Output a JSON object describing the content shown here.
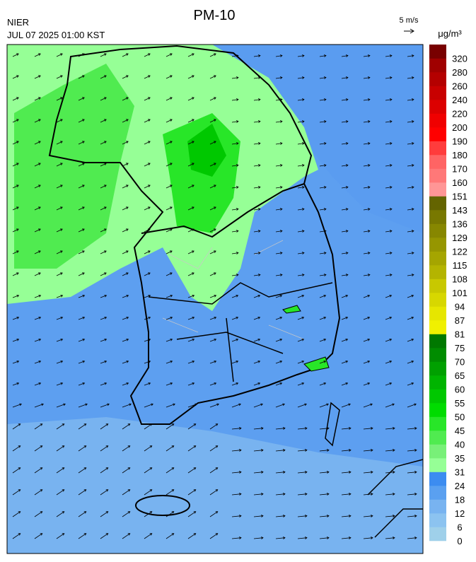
{
  "header": {
    "title": "PM-10",
    "agency": "NIER",
    "timestamp": "JUL 07 2025 01:00 KST",
    "wind_scale": "5 m/s"
  },
  "legend": {
    "unit": "μg/m³",
    "levels": [
      {
        "label": 0,
        "color": "#9fd0ea"
      },
      {
        "label": 6,
        "color": "#8cc3f0"
      },
      {
        "label": 12,
        "color": "#78b3f0"
      },
      {
        "label": 18,
        "color": "#5aa0f0"
      },
      {
        "label": 24,
        "color": "#3c8cf0"
      },
      {
        "label": 31,
        "color": "#96ff96"
      },
      {
        "label": 35,
        "color": "#78f078"
      },
      {
        "label": 40,
        "color": "#50eb50"
      },
      {
        "label": 45,
        "color": "#28e628"
      },
      {
        "label": 50,
        "color": "#00dc00"
      },
      {
        "label": 55,
        "color": "#00c800"
      },
      {
        "label": 60,
        "color": "#00b400"
      },
      {
        "label": 65,
        "color": "#00a000"
      },
      {
        "label": 70,
        "color": "#008c00"
      },
      {
        "label": 75,
        "color": "#007800"
      },
      {
        "label": 81,
        "color": "#f0f000"
      },
      {
        "label": 87,
        "color": "#e6e600"
      },
      {
        "label": 94,
        "color": "#d7d700"
      },
      {
        "label": 101,
        "color": "#c8c800"
      },
      {
        "label": 108,
        "color": "#b4b400"
      },
      {
        "label": 115,
        "color": "#a5a500"
      },
      {
        "label": 122,
        "color": "#969600"
      },
      {
        "label": 129,
        "color": "#878700"
      },
      {
        "label": 136,
        "color": "#787800"
      },
      {
        "label": 143,
        "color": "#646400"
      },
      {
        "label": 151,
        "color": "#ff9696"
      },
      {
        "label": 160,
        "color": "#ff7878"
      },
      {
        "label": 170,
        "color": "#ff6464"
      },
      {
        "label": 180,
        "color": "#ff3c3c"
      },
      {
        "label": 190,
        "color": "#ff0000"
      },
      {
        "label": 200,
        "color": "#f00000"
      },
      {
        "label": 220,
        "color": "#dc0000"
      },
      {
        "label": 240,
        "color": "#c80000"
      },
      {
        "label": 260,
        "color": "#b40000"
      },
      {
        "label": 280,
        "color": "#a00000"
      },
      {
        "label": 320,
        "color": "#780000"
      }
    ]
  }
}
